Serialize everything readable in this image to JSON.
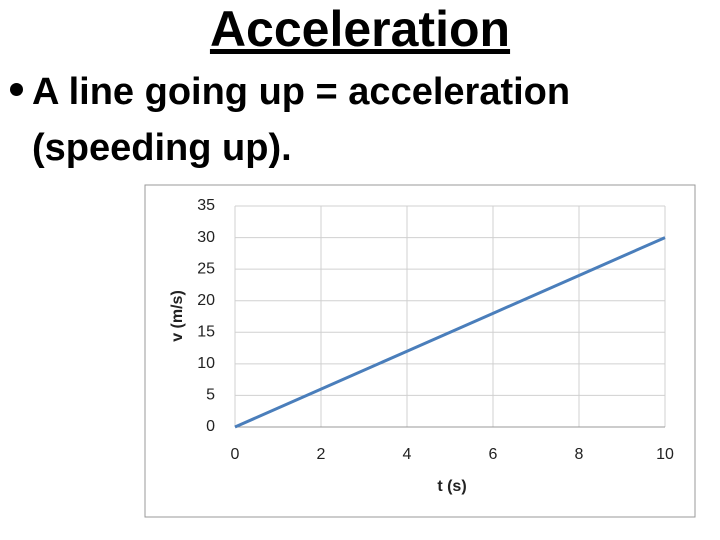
{
  "slide": {
    "title": "Acceleration",
    "bullet": "A line going up = acceleration (speeding up)."
  },
  "chart_data": {
    "type": "line",
    "xlabel": "t (s)",
    "ylabel": "v (m/s)",
    "x": [
      0,
      2,
      4,
      6,
      8,
      10
    ],
    "series": [
      {
        "color": "#4a7ebb",
        "values": [
          0,
          6,
          12,
          18,
          24,
          30
        ]
      }
    ],
    "xlim": [
      0,
      10
    ],
    "xticks": [
      0,
      2,
      4,
      6,
      8,
      10
    ],
    "ylim": [
      0,
      35
    ],
    "yticks": [
      0,
      5,
      10,
      15,
      20,
      25,
      30,
      35
    ],
    "grid": true
  }
}
